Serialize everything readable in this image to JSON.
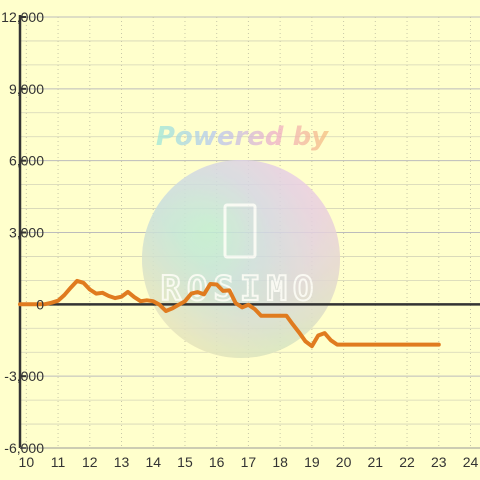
{
  "chart_data": {
    "type": "line",
    "title": "",
    "xlabel": "",
    "ylabel": "",
    "xlim": [
      9.8,
      24.3
    ],
    "ylim": [
      -6000,
      12000
    ],
    "x_ticks": [
      10,
      11,
      12,
      13,
      14,
      15,
      16,
      17,
      18,
      19,
      20,
      21,
      22,
      23,
      24
    ],
    "x_tick_labels": [
      "10",
      "11",
      "12",
      "13",
      "14",
      "15",
      "16",
      "17",
      "18",
      "19",
      "20",
      "21",
      "22",
      "23",
      "24"
    ],
    "y_ticks": [
      -6000,
      -3000,
      0,
      3000,
      6000,
      9000,
      12000
    ],
    "y_tick_labels": [
      "-6,000",
      "-3,000",
      "0",
      "3,000",
      "6,000",
      "9,000",
      "12,000"
    ],
    "grid": true,
    "series": [
      {
        "color": "#e07b1f",
        "x": [
          9.8,
          10.0,
          10.2,
          10.4,
          10.6,
          10.8,
          11.0,
          11.2,
          11.4,
          11.6,
          11.8,
          12.0,
          12.2,
          12.4,
          12.6,
          12.8,
          13.0,
          13.2,
          13.4,
          13.6,
          13.8,
          14.0,
          14.2,
          14.4,
          14.6,
          14.8,
          15.0,
          15.2,
          15.4,
          15.6,
          15.8,
          16.0,
          16.2,
          16.4,
          16.6,
          16.8,
          17.0,
          17.2,
          17.4,
          17.6,
          17.8,
          18.0,
          18.2,
          18.4,
          18.6,
          18.8,
          19.0,
          19.2,
          19.4,
          19.6,
          19.8,
          20.0,
          20.2,
          20.4,
          20.6,
          20.8,
          21.0,
          21.2,
          21.4,
          21.6,
          21.8,
          22.0,
          22.2,
          22.4,
          22.6,
          22.8,
          23.0
        ],
        "y": [
          0,
          0,
          0,
          0,
          10,
          70,
          150,
          390,
          700,
          980,
          900,
          620,
          450,
          480,
          350,
          260,
          320,
          520,
          300,
          130,
          170,
          130,
          -20,
          -280,
          -170,
          -20,
          130,
          450,
          510,
          420,
          850,
          830,
          560,
          580,
          50,
          -130,
          -20,
          -200,
          -480,
          -480,
          -480,
          -480,
          -480,
          -840,
          -1180,
          -1550,
          -1750,
          -1300,
          -1200,
          -1500,
          -1680,
          -1680,
          -1680,
          -1680,
          -1680,
          -1680,
          -1680,
          -1680,
          -1680,
          -1680,
          -1680,
          -1680,
          -1680,
          -1680,
          -1680,
          -1680,
          -1680
        ]
      }
    ]
  },
  "watermark": {
    "text": "Powered by",
    "logo_text": "ROSIMO"
  }
}
